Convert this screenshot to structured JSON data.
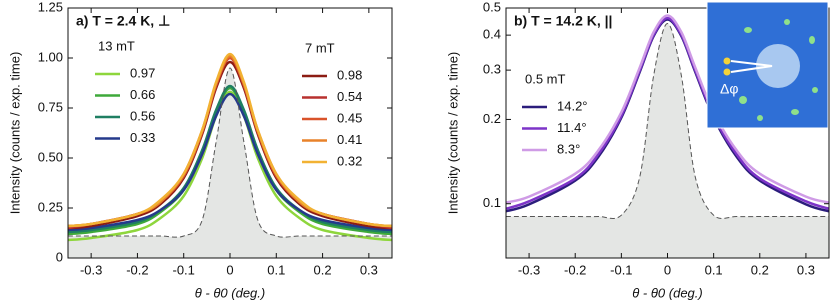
{
  "chart_data": [
    {
      "type": "line",
      "title": "a) T = 2.4 K, ⊥",
      "ylabel": "Intensity (counts / exp. time)",
      "xlabel": "θ - θ0 (deg.)",
      "x": [
        -0.35,
        -0.3,
        -0.2,
        -0.15,
        -0.1,
        -0.06,
        -0.03,
        0,
        0.03,
        0.06,
        0.1,
        0.15,
        0.2,
        0.3,
        0.35
      ],
      "xlim": [
        -0.35,
        0.35
      ],
      "xticks": [
        -0.3,
        -0.2,
        -0.1,
        0,
        0.1,
        0.2,
        0.3
      ],
      "ylim": [
        0,
        1.25
      ],
      "yticks": [
        0,
        0.25,
        {
          "value": 0.5,
          "label": "0.50"
        },
        0.75,
        {
          "value": 1,
          "label": "1.00"
        },
        1.25
      ],
      "log_y": false,
      "reference": {
        "color": "#555555",
        "fill": "#e4e6e4",
        "values": [
          0.11,
          0.11,
          0.11,
          0.11,
          0.11,
          0.19,
          0.58,
          0.95,
          0.58,
          0.19,
          0.11,
          0.11,
          0.11,
          0.11,
          0.11
        ]
      },
      "groups": [
        {
          "title": "13 mT",
          "series": [
            {
              "name": "0.97",
              "color": "#8ed63c",
              "values": [
                0.09,
                0.1,
                0.14,
                0.2,
                0.31,
                0.5,
                0.71,
                0.83,
                0.71,
                0.5,
                0.31,
                0.2,
                0.14,
                0.1,
                0.09
              ]
            },
            {
              "name": "0.66",
              "color": "#3ea93a",
              "values": [
                0.12,
                0.13,
                0.17,
                0.23,
                0.34,
                0.53,
                0.73,
                0.85,
                0.73,
                0.53,
                0.34,
                0.23,
                0.17,
                0.13,
                0.12
              ]
            },
            {
              "name": "0.56",
              "color": "#1f7f62",
              "values": [
                0.13,
                0.14,
                0.18,
                0.24,
                0.35,
                0.54,
                0.74,
                0.86,
                0.74,
                0.54,
                0.35,
                0.24,
                0.18,
                0.14,
                0.13
              ]
            },
            {
              "name": "0.33",
              "color": "#253a8c",
              "values": [
                0.14,
                0.15,
                0.19,
                0.24,
                0.34,
                0.52,
                0.71,
                0.82,
                0.71,
                0.52,
                0.34,
                0.24,
                0.19,
                0.15,
                0.14
              ]
            }
          ]
        },
        {
          "title": "7 mT",
          "series": [
            {
              "name": "0.98",
              "color": "#8c1c13",
              "values": [
                0.15,
                0.16,
                0.21,
                0.27,
                0.4,
                0.62,
                0.85,
                0.98,
                0.85,
                0.62,
                0.4,
                0.27,
                0.21,
                0.16,
                0.15
              ]
            },
            {
              "name": "0.54",
              "color": "#b8312f",
              "values": [
                0.15,
                0.17,
                0.22,
                0.28,
                0.41,
                0.63,
                0.86,
                1.0,
                0.86,
                0.63,
                0.41,
                0.28,
                0.22,
                0.17,
                0.15
              ]
            },
            {
              "name": "0.45",
              "color": "#d9532a",
              "values": [
                0.16,
                0.17,
                0.22,
                0.28,
                0.41,
                0.63,
                0.87,
                1.0,
                0.87,
                0.63,
                0.41,
                0.28,
                0.22,
                0.17,
                0.16
              ]
            },
            {
              "name": "0.41",
              "color": "#e8822a",
              "values": [
                0.16,
                0.17,
                0.22,
                0.28,
                0.42,
                0.64,
                0.87,
                1.01,
                0.87,
                0.64,
                0.42,
                0.28,
                0.22,
                0.17,
                0.16
              ]
            },
            {
              "name": "0.32",
              "color": "#f2b233",
              "values": [
                0.16,
                0.17,
                0.22,
                0.29,
                0.42,
                0.64,
                0.88,
                1.02,
                0.88,
                0.64,
                0.42,
                0.29,
                0.22,
                0.17,
                0.16
              ]
            }
          ]
        }
      ]
    },
    {
      "type": "line",
      "title": "b) T = 14.2 K, ||",
      "ylabel": "Intensity (counts / exp. time)",
      "xlabel": "θ - θ0 (deg.)",
      "inset_label": "Δφ",
      "x": [
        -0.35,
        -0.3,
        -0.2,
        -0.15,
        -0.1,
        -0.06,
        -0.03,
        0,
        0.03,
        0.06,
        0.1,
        0.15,
        0.2,
        0.3,
        0.35
      ],
      "xlim": [
        -0.35,
        0.35
      ],
      "xticks": [
        -0.3,
        -0.2,
        -0.1,
        0,
        0.1,
        0.2,
        0.3
      ],
      "ylim": [
        0.064,
        0.5
      ],
      "yticks": [
        0.1,
        0.2,
        0.3,
        0.4,
        0.5
      ],
      "log_y": true,
      "reference": {
        "color": "#555555",
        "fill": "#e4e6e4",
        "values": [
          0.09,
          0.09,
          0.09,
          0.09,
          0.091,
          0.125,
          0.287,
          0.44,
          0.287,
          0.125,
          0.091,
          0.09,
          0.09,
          0.09,
          0.09
        ]
      },
      "groups": [
        {
          "title": "0.5 mT",
          "series": [
            {
              "name": "14.2°",
              "color": "#2b1d7c",
              "values": [
                0.094,
                0.0995,
                0.121,
                0.147,
                0.203,
                0.296,
                0.397,
                0.455,
                0.397,
                0.296,
                0.203,
                0.147,
                0.121,
                0.0995,
                0.094
              ]
            },
            {
              "name": "11.4°",
              "color": "#7d34c8",
              "values": [
                0.096,
                0.102,
                0.123,
                0.15,
                0.206,
                0.3,
                0.401,
                0.46,
                0.401,
                0.3,
                0.206,
                0.15,
                0.123,
                0.102,
                0.096
              ]
            },
            {
              "name": "8.3°",
              "color": "#cf9be6",
              "values": [
                0.101,
                0.106,
                0.128,
                0.155,
                0.212,
                0.307,
                0.41,
                0.47,
                0.41,
                0.307,
                0.212,
                0.155,
                0.128,
                0.106,
                0.101
              ]
            }
          ]
        }
      ]
    }
  ]
}
